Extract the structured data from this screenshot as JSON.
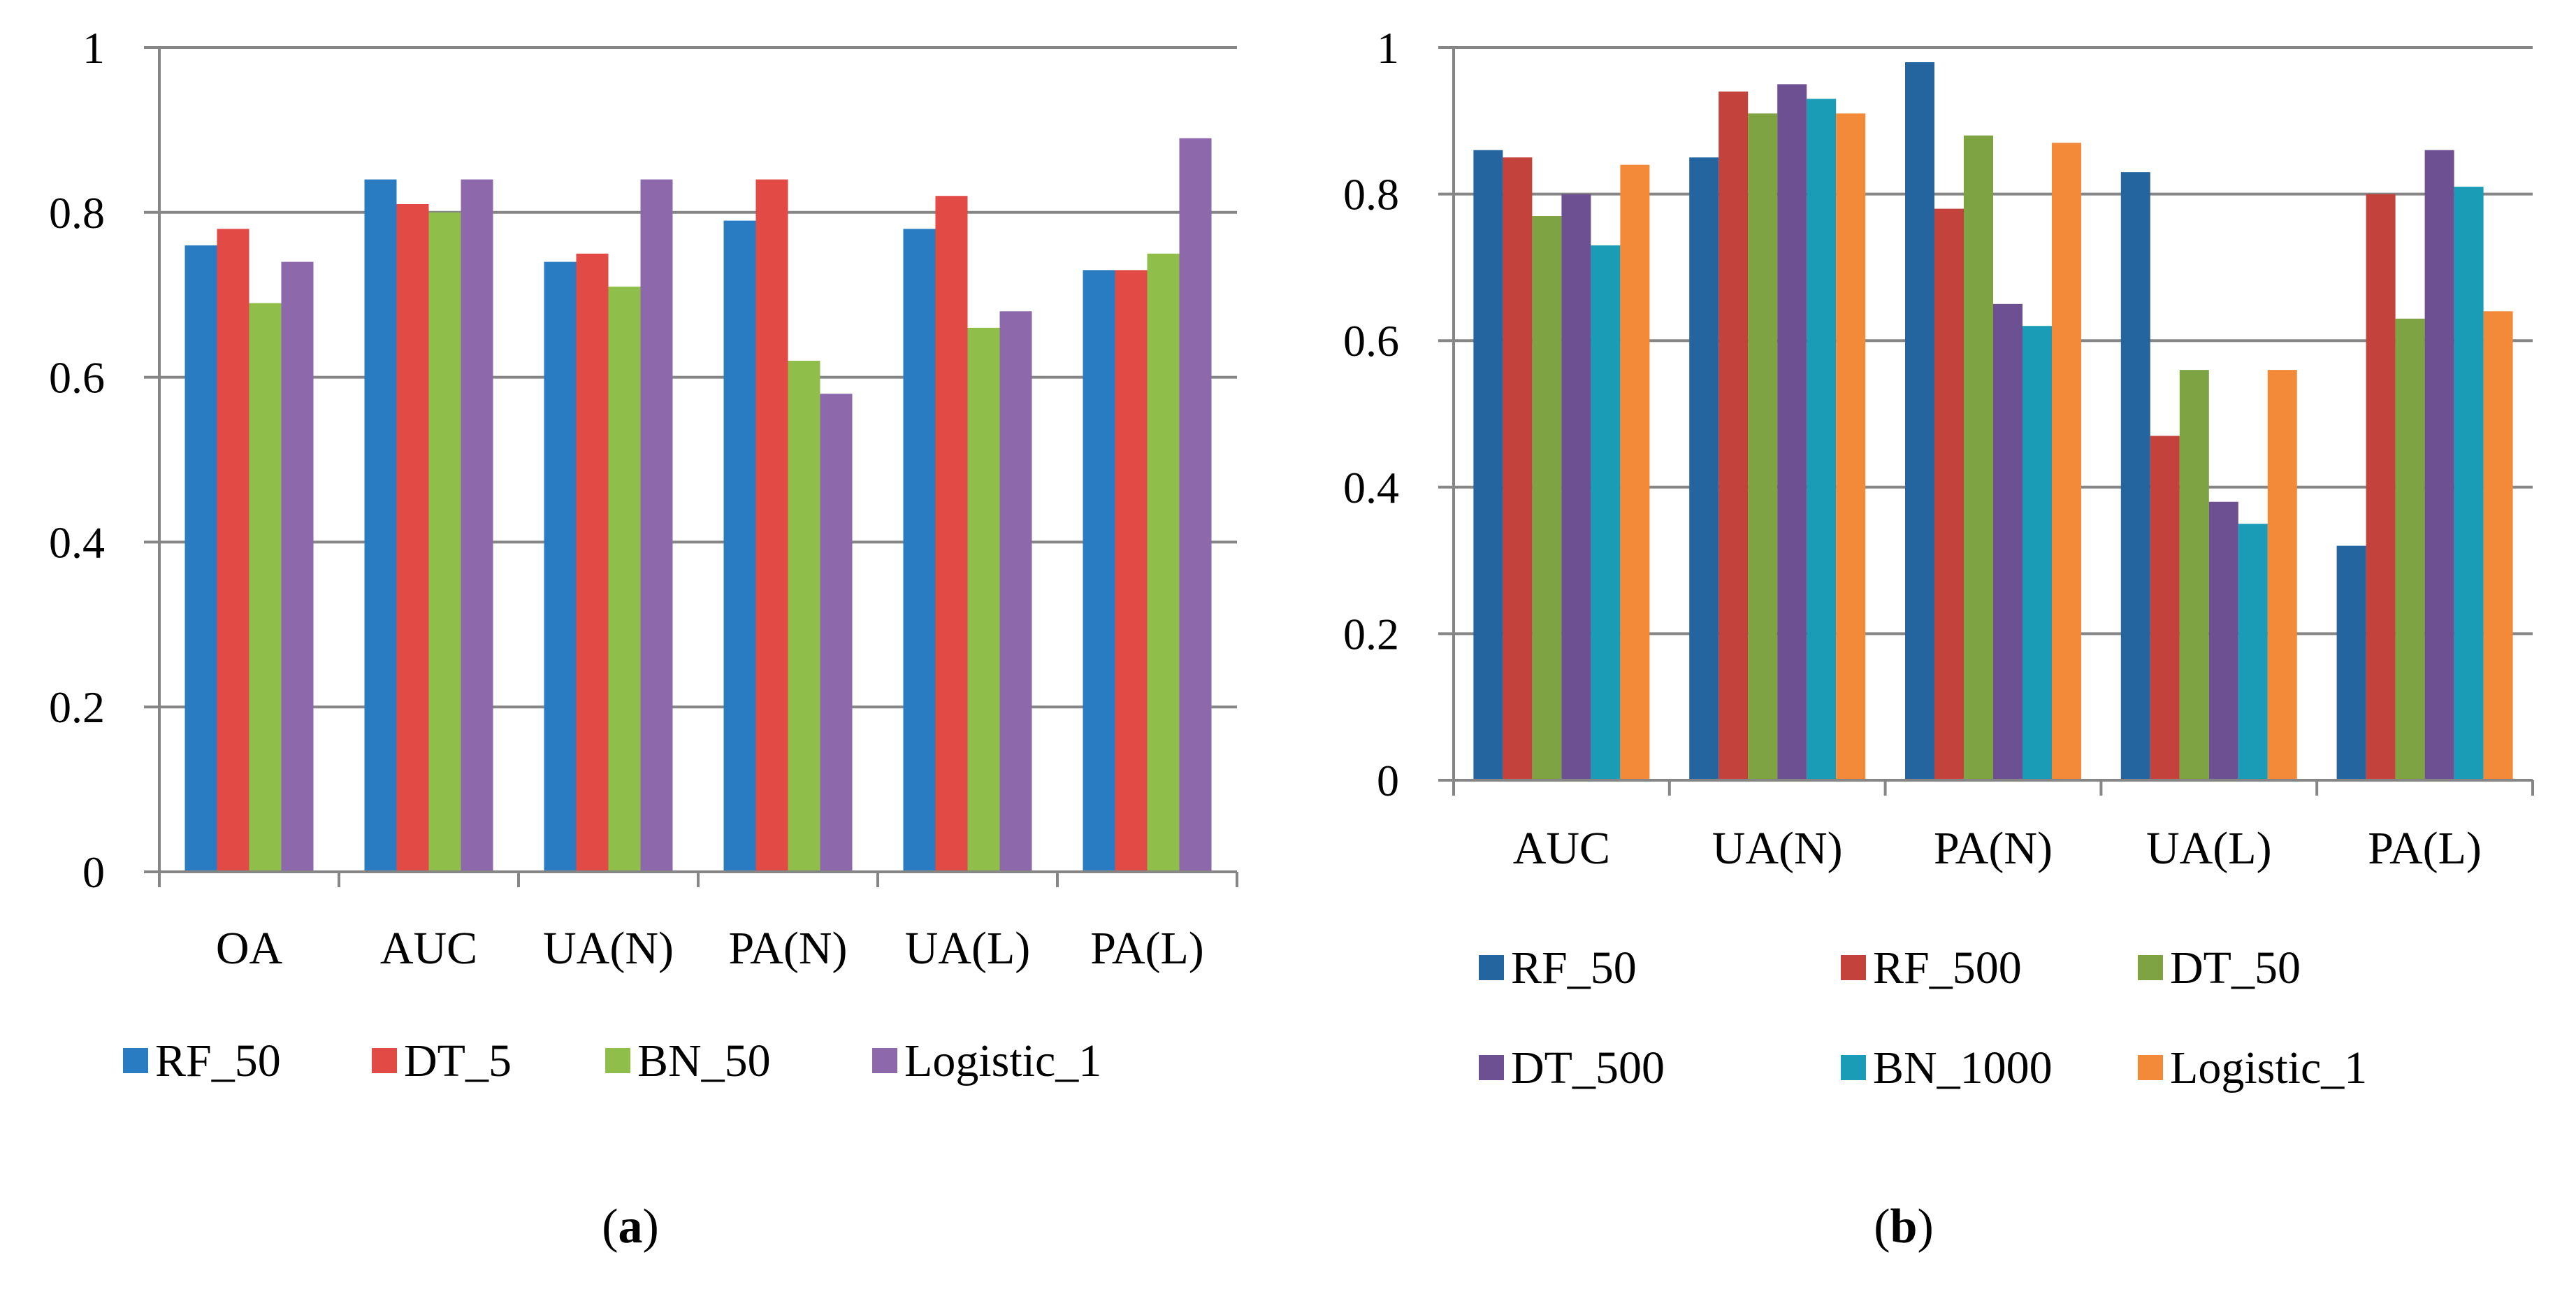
{
  "chart_data": [
    {
      "type": "bar",
      "panel_label": "a",
      "categories": [
        "OA",
        "AUC",
        "UA(N)",
        "PA(N)",
        "UA(L)",
        "PA(L)"
      ],
      "series": [
        {
          "name": "RF_50",
          "color": "#2a7cc2",
          "values": [
            0.76,
            0.84,
            0.74,
            0.79,
            0.78,
            0.73
          ]
        },
        {
          "name": "DT_5",
          "color": "#e24a46",
          "values": [
            0.78,
            0.81,
            0.75,
            0.84,
            0.82,
            0.73
          ]
        },
        {
          "name": "BN_50",
          "color": "#8fbe4b",
          "values": [
            0.69,
            0.8,
            0.71,
            0.62,
            0.66,
            0.75
          ]
        },
        {
          "name": "Logistic_1",
          "color": "#8d69ac",
          "values": [
            0.74,
            0.84,
            0.84,
            0.58,
            0.68,
            0.89
          ]
        }
      ],
      "ylim": [
        0,
        1
      ],
      "yticks": [
        0,
        0.2,
        0.4,
        0.6,
        0.8,
        1
      ],
      "ytick_labels": [
        "0",
        "0.2",
        "0.4",
        "0.6",
        "0.8",
        "1"
      ],
      "grid": true,
      "legend": "bottom"
    },
    {
      "type": "bar",
      "panel_label": "b",
      "categories": [
        "AUC",
        "UA(N)",
        "PA(N)",
        "UA(L)",
        "PA(L)"
      ],
      "series": [
        {
          "name": "RF_50",
          "color": "#2465a0",
          "values": [
            0.86,
            0.85,
            0.98,
            0.83,
            0.32
          ]
        },
        {
          "name": "RF_500",
          "color": "#c4423c",
          "values": [
            0.85,
            0.94,
            0.78,
            0.47,
            0.8
          ]
        },
        {
          "name": "DT_50",
          "color": "#7ea343",
          "values": [
            0.77,
            0.91,
            0.88,
            0.56,
            0.63
          ]
        },
        {
          "name": "DT_500",
          "color": "#6d5091",
          "values": [
            0.8,
            0.95,
            0.65,
            0.38,
            0.86
          ]
        },
        {
          "name": "BN_1000",
          "color": "#1a9cb6",
          "values": [
            0.73,
            0.93,
            0.62,
            0.35,
            0.81
          ]
        },
        {
          "name": "Logistic_1",
          "color": "#f28a3a",
          "values": [
            0.84,
            0.91,
            0.87,
            0.56,
            0.64
          ]
        }
      ],
      "ylim": [
        0,
        1
      ],
      "yticks": [
        0,
        0.2,
        0.4,
        0.6,
        0.8,
        1
      ],
      "ytick_labels": [
        "0",
        "0.2",
        "0.4",
        "0.6",
        "0.8",
        "1"
      ],
      "grid": true,
      "legend": "bottom"
    }
  ]
}
